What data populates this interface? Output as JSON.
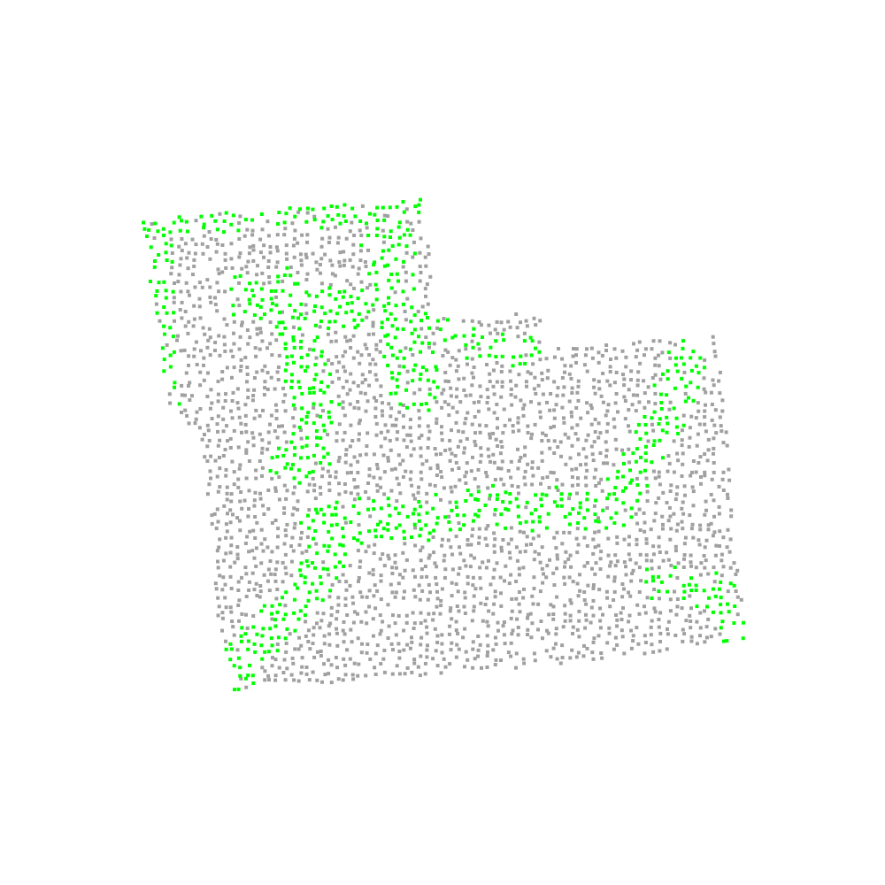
{
  "colors": {
    "background": "#ffffff",
    "floor_point": "#a0a0a0",
    "highlight_point": "#00ff00"
  }
}
